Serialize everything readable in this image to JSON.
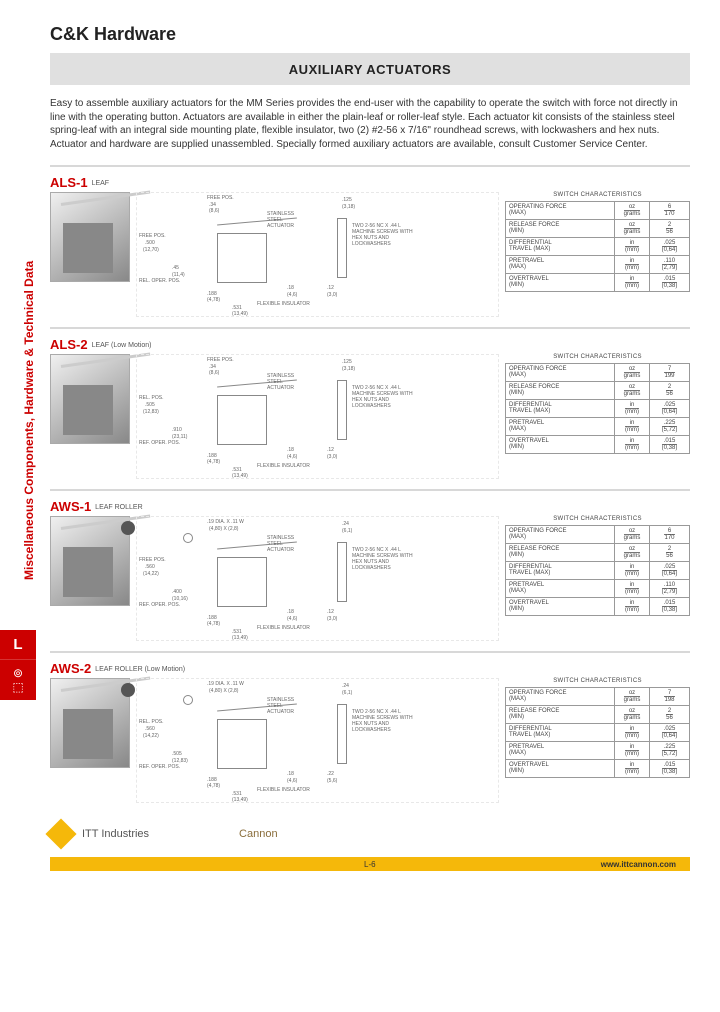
{
  "header": {
    "brand": "C&K Hardware",
    "section_title": "AUXILIARY ACTUATORS"
  },
  "sidebar": {
    "vertical_text": "Miscellaneous Components, Hardware & Technical Data",
    "tab_letter": "L"
  },
  "intro": "Easy to assemble auxiliary actuators for the MM Series provides the end-user with the capability to operate the switch with force not directly in line with the operating button. Actuators are available in either the plain-leaf or roller-leaf style. Each actuator kit consists of the stainless steel spring-leaf with an integral side mounting plate, flexible insulator, two (2) #2-56 x 7/16\" roundhead screws, with lockwashers and hex nuts. Actuator and hardware are supplied unassembled. Specially formed auxiliary actuators are available, consult Customer Service Center.",
  "table_caption": "SWITCH CHARACTERISTICS",
  "char_rows": [
    {
      "label": "OPERATING FORCE",
      "paren": "(MAX)",
      "unit_top": "oz",
      "unit_bot": "grams"
    },
    {
      "label": "RELEASE FORCE",
      "paren": "(MIN)",
      "unit_top": "oz",
      "unit_bot": "grams"
    },
    {
      "label": "DIFFERENTIAL",
      "paren": "TRAVEL (MAX)",
      "unit_top": "in",
      "unit_bot": "(mm)"
    },
    {
      "label": "PRETRAVEL",
      "paren": "(MAX)",
      "unit_top": "in",
      "unit_bot": "(mm)"
    },
    {
      "label": "OVERTRAVEL",
      "paren": "(MIN)",
      "unit_top": "in",
      "unit_bot": "(mm)"
    }
  ],
  "products": [
    {
      "code": "ALS-1",
      "sub": "LEAF",
      "roller": false,
      "vals": [
        {
          "t": "6",
          "b": "170"
        },
        {
          "t": "2",
          "b": "56"
        },
        {
          "t": ".025",
          "b": "(0,64)"
        },
        {
          "t": ".110",
          "b": "(2,79)"
        },
        {
          "t": ".015",
          "b": "(0,38)"
        }
      ],
      "diag": {
        "free_pos": "FREE POS.",
        "free_val": ".34",
        "free_mm": "(8,6)",
        "stainless": "STAINLESS STEEL ACTUATOR",
        "screws": "TWO 2-56 NC X .44 L MACHINE SCREWS WITH HEX NUTS AND LOCKWASHERS",
        "flex": "FLEXIBLE INSULATOR",
        "fp2": "FREE POS.",
        "fp2v": ".500",
        "fp2m": "(12,70)",
        "rel": "REL. OPER. POS.",
        "d1": ".45",
        "d1m": "(11,4)",
        "d2": ".188",
        "d2m": "(4,78)",
        "d3": ".531",
        "d3m": "(13,49)",
        "d4": ".18",
        "d4m": "(4,6)",
        "d5": ".125",
        "d5m": "(3,18)",
        "d6": ".12",
        "d6m": "(3,0)"
      }
    },
    {
      "code": "ALS-2",
      "sub": "LEAF (Low Motion)",
      "roller": false,
      "vals": [
        {
          "t": "7",
          "b": "199"
        },
        {
          "t": "2",
          "b": "56"
        },
        {
          "t": ".025",
          "b": "(0,64)"
        },
        {
          "t": ".225",
          "b": "(5,72)"
        },
        {
          "t": ".015",
          "b": "(0,38)"
        }
      ],
      "diag": {
        "free_pos": "FREE POS.",
        "free_val": ".34",
        "free_mm": "(8,6)",
        "stainless": "STAINLESS STEEL ACTUATOR",
        "screws": "TWO 2-56 NC X .44 L MACHINE SCREWS WITH HEX NUTS AND LOCKWASHERS",
        "flex": "FLEXIBLE INSULATOR",
        "fp2": "REL. POS.",
        "fp2v": ".505",
        "fp2m": "(12,83)",
        "rel": "REF. OPER. POS.",
        "d1": ".910",
        "d1m": "(23,11)",
        "d2": ".188",
        "d2m": "(4,78)",
        "d3": ".531",
        "d3m": "(13,49)",
        "d4": ".18",
        "d4m": "(4,6)",
        "d5": ".125",
        "d5m": "(3,18)",
        "d6": ".12",
        "d6m": "(3,0)"
      }
    },
    {
      "code": "AWS-1",
      "sub": "LEAF ROLLER",
      "roller": true,
      "vals": [
        {
          "t": "6",
          "b": "170"
        },
        {
          "t": "2",
          "b": "56"
        },
        {
          "t": ".025",
          "b": "(0,64)"
        },
        {
          "t": ".110",
          "b": "(2,79)"
        },
        {
          "t": ".015",
          "b": "(0,38)"
        }
      ],
      "diag": {
        "free_pos": ".19 DIA. X .11 W",
        "free_val": "(4,80) X (2,8)",
        "free_mm": "",
        "stainless": "STAINLESS STEEL ACTUATOR",
        "screws": "TWO 2-56 NC X .44 L MACHINE SCREWS WITH HEX NUTS AND LOCKWASHERS",
        "flex": "FLEXIBLE INSULATOR",
        "fp2": "FREE POS.",
        "fp2v": ".560",
        "fp2m": "(14,22)",
        "rel": "REF. OPER. POS.",
        "d1": ".400",
        "d1m": "(10,16)",
        "d2": ".188",
        "d2m": "(4,78)",
        "d3": ".531",
        "d3m": "(13,49)",
        "d4": ".18",
        "d4m": "(4,6)",
        "d5": ".24",
        "d5m": "(6,1)",
        "d6": ".12",
        "d6m": "(3,0)"
      }
    },
    {
      "code": "AWS-2",
      "sub": "LEAF ROLLER (Low Motion)",
      "roller": true,
      "vals": [
        {
          "t": "7",
          "b": "198"
        },
        {
          "t": "2",
          "b": "56"
        },
        {
          "t": ".025",
          "b": "(0,64)"
        },
        {
          "t": ".225",
          "b": "(5,72)"
        },
        {
          "t": ".015",
          "b": "(0,38)"
        }
      ],
      "diag": {
        "free_pos": ".19 DIA. X .11 W",
        "free_val": "(4,80) X (2,8)",
        "free_mm": "",
        "stainless": "STAINLESS STEEL ACTUATOR",
        "screws": "TWO 2-56 NC X .44 L MACHINE SCREWS WITH HEX NUTS AND LOCKWASHERS",
        "flex": "FLEXIBLE INSULATOR",
        "fp2": "REL. POS.",
        "fp2v": ".560",
        "fp2m": "(14,22)",
        "rel": "REF. OPER. POS.",
        "d1": ".505",
        "d1m": "(12,83)",
        "d2": ".188",
        "d2m": "(4,78)",
        "d3": ".531",
        "d3m": "(13,49)",
        "d4": ".18",
        "d4m": "(4,6)",
        "d5": ".24",
        "d5m": "(6,1)",
        "d6": ".22",
        "d6m": "(5,6)"
      }
    }
  ],
  "footer": {
    "company": "ITT Industries",
    "brand2": "Cannon",
    "page": "L-6",
    "url": "www.ittcannon.com"
  },
  "colors": {
    "accent": "#cc0000",
    "gold": "#f5b80a",
    "grey_bar": "#e0e0e0",
    "border": "#999"
  }
}
